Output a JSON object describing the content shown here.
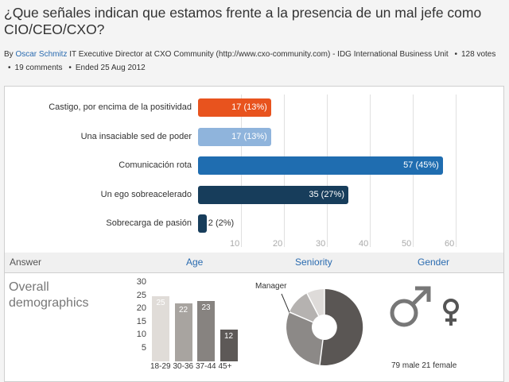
{
  "title": "¿Que señales indican que estamos frente a la presencia de un mal jefe como CIO/CEO/CXO?",
  "byline": {
    "prefix": "By",
    "author": "Oscar Schmitz",
    "role": "IT Executive Director at CXO Community (http://www.cxo-community.com) - IDG International Business Unit",
    "votes": "128 votes",
    "comments": "19 comments",
    "ended": "Ended 25 Aug 2012"
  },
  "chart_data": {
    "type": "bar",
    "orientation": "horizontal",
    "categories": [
      "Castigo, por encima de la positividad",
      "Una insaciable sed de poder",
      "Comunicación rota",
      "Un ego sobreacelerado",
      "Sobrecarga de pasión"
    ],
    "values": [
      17,
      17,
      57,
      35,
      2
    ],
    "value_labels": [
      "17 (13%)",
      "17 (13%)",
      "57 (45%)",
      "35 (27%)",
      "2 (2%)"
    ],
    "colors": [
      "#e8531e",
      "#8fb4dc",
      "#1f6db0",
      "#173d5b",
      "#173d5b"
    ],
    "xticks": [
      "10",
      "20",
      "30",
      "40",
      "50",
      "60"
    ],
    "xlim": [
      0,
      60
    ],
    "grid": true
  },
  "tabs": {
    "answer": "Answer",
    "age": "Age",
    "seniority": "Seniority",
    "gender": "Gender"
  },
  "demographics": {
    "title": "Overall demographics",
    "age": {
      "yticks": [
        "30",
        "25",
        "20",
        "15",
        "10",
        "5"
      ],
      "ylim": [
        0,
        30
      ],
      "categories": [
        "18-29",
        "30-36",
        "37-44",
        "45+"
      ],
      "values": [
        25,
        22,
        23,
        12
      ],
      "colors": [
        "#e0dcd8",
        "#a8a4a0",
        "#878380",
        "#5d5957"
      ]
    },
    "seniority": {
      "label": "Manager",
      "type": "donut"
    },
    "gender": {
      "male_icon": "male-symbol-icon",
      "female_icon": "female-symbol-icon",
      "summary": "79 male 21 female"
    }
  }
}
